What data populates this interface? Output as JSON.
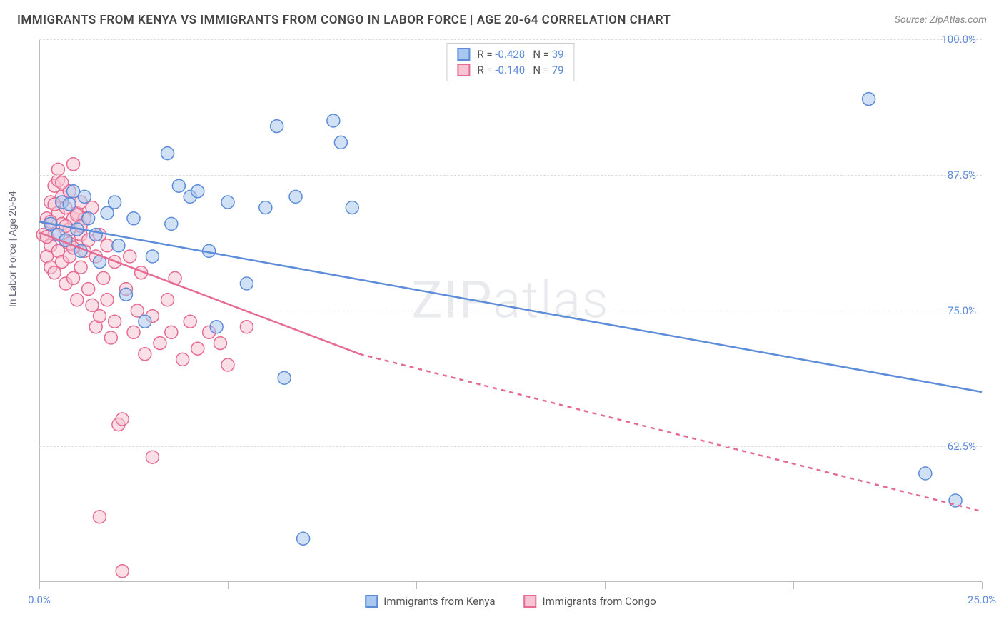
{
  "title": "IMMIGRANTS FROM KENYA VS IMMIGRANTS FROM CONGO IN LABOR FORCE | AGE 20-64 CORRELATION CHART",
  "source_label": "Source: ZipAtlas.com",
  "y_axis_label": "In Labor Force | Age 20-64",
  "watermark": "ZIPatlas",
  "chart": {
    "type": "scatter-with-regression",
    "background_color": "#ffffff",
    "grid_color": "#dddddd",
    "grid_dash": "4,4",
    "axis_color": "#bbbbbb",
    "tick_label_color": "#5d8cd8",
    "tick_fontsize": 15,
    "xlim": [
      0,
      25
    ],
    "ylim": [
      50,
      100
    ],
    "yticks": [
      62.5,
      75.0,
      87.5,
      100.0
    ],
    "ytick_labels": [
      "62.5%",
      "75.0%",
      "87.5%",
      "100.0%"
    ],
    "xticks": [
      0,
      5,
      10,
      15,
      20,
      25
    ],
    "xtick_labels_shown": {
      "0": "0.0%",
      "25": "25.0%"
    },
    "marker_radius": 9,
    "marker_opacity": 0.55,
    "line_width": 2.5
  },
  "series": {
    "kenya": {
      "label": "Immigrants from Kenya",
      "color_fill": "#a9c8ef",
      "color_stroke": "#5d8cd8",
      "R": "-0.428",
      "N": "39",
      "line": {
        "x1": 0,
        "y1": 83.2,
        "x2": 25,
        "y2": 67.5,
        "dash": null
      },
      "points": [
        [
          0.3,
          83.0
        ],
        [
          0.5,
          82.0
        ],
        [
          0.6,
          85.0
        ],
        [
          0.7,
          81.5
        ],
        [
          0.8,
          84.8
        ],
        [
          0.9,
          86.0
        ],
        [
          1.0,
          82.5
        ],
        [
          1.1,
          80.5
        ],
        [
          1.2,
          85.5
        ],
        [
          1.3,
          83.5
        ],
        [
          1.5,
          82.0
        ],
        [
          1.6,
          79.5
        ],
        [
          1.8,
          84.0
        ],
        [
          2.0,
          85.0
        ],
        [
          2.1,
          81.0
        ],
        [
          2.3,
          76.5
        ],
        [
          2.5,
          83.5
        ],
        [
          2.8,
          74.0
        ],
        [
          3.0,
          80.0
        ],
        [
          3.4,
          89.5
        ],
        [
          3.5,
          83.0
        ],
        [
          3.7,
          86.5
        ],
        [
          4.0,
          85.5
        ],
        [
          4.2,
          86.0
        ],
        [
          4.5,
          80.5
        ],
        [
          4.7,
          73.5
        ],
        [
          5.0,
          85.0
        ],
        [
          5.5,
          77.5
        ],
        [
          6.0,
          84.5
        ],
        [
          6.3,
          92.0
        ],
        [
          6.5,
          68.8
        ],
        [
          7.0,
          54.0
        ],
        [
          8.0,
          90.5
        ],
        [
          7.8,
          92.5
        ],
        [
          8.3,
          84.5
        ],
        [
          22.0,
          94.5
        ],
        [
          23.5,
          60.0
        ],
        [
          24.3,
          57.5
        ],
        [
          6.8,
          85.5
        ]
      ]
    },
    "congo": {
      "label": "Immigrants from Congo",
      "color_fill": "#f6c4d3",
      "color_stroke": "#e66b93",
      "R": "-0.140",
      "N": "79",
      "line_solid": {
        "x1": 0,
        "y1": 82.2,
        "x2": 8.5,
        "y2": 71.0
      },
      "line_dash": {
        "x1": 8.5,
        "y1": 71.0,
        "x2": 25,
        "y2": 56.5,
        "dash": "6,6"
      },
      "points": [
        [
          0.1,
          82.0
        ],
        [
          0.2,
          83.5
        ],
        [
          0.2,
          80.0
        ],
        [
          0.3,
          85.0
        ],
        [
          0.3,
          81.0
        ],
        [
          0.3,
          79.0
        ],
        [
          0.4,
          86.5
        ],
        [
          0.4,
          82.0
        ],
        [
          0.4,
          78.5
        ],
        [
          0.5,
          84.0
        ],
        [
          0.5,
          80.5
        ],
        [
          0.5,
          87.0
        ],
        [
          0.6,
          83.0
        ],
        [
          0.6,
          79.5
        ],
        [
          0.6,
          85.5
        ],
        [
          0.7,
          81.5
        ],
        [
          0.7,
          84.5
        ],
        [
          0.7,
          77.5
        ],
        [
          0.8,
          82.5
        ],
        [
          0.8,
          86.0
        ],
        [
          0.8,
          80.0
        ],
        [
          0.9,
          83.5
        ],
        [
          0.9,
          78.0
        ],
        [
          0.9,
          88.5
        ],
        [
          1.0,
          81.0
        ],
        [
          1.0,
          84.0
        ],
        [
          1.0,
          76.0
        ],
        [
          1.1,
          82.0
        ],
        [
          1.1,
          85.0
        ],
        [
          1.1,
          79.0
        ],
        [
          1.2,
          80.5
        ],
        [
          1.2,
          83.5
        ],
        [
          1.3,
          77.0
        ],
        [
          1.3,
          81.5
        ],
        [
          1.4,
          75.5
        ],
        [
          1.4,
          84.5
        ],
        [
          1.5,
          73.5
        ],
        [
          1.5,
          80.0
        ],
        [
          1.6,
          74.5
        ],
        [
          1.6,
          82.0
        ],
        [
          1.7,
          78.0
        ],
        [
          1.8,
          76.0
        ],
        [
          1.8,
          81.0
        ],
        [
          1.9,
          72.5
        ],
        [
          2.0,
          74.0
        ],
        [
          2.0,
          79.5
        ],
        [
          2.1,
          64.5
        ],
        [
          2.2,
          65.0
        ],
        [
          2.3,
          77.0
        ],
        [
          2.4,
          80.0
        ],
        [
          2.5,
          73.0
        ],
        [
          2.6,
          75.0
        ],
        [
          2.7,
          78.5
        ],
        [
          2.8,
          71.0
        ],
        [
          3.0,
          74.5
        ],
        [
          3.0,
          61.5
        ],
        [
          3.2,
          72.0
        ],
        [
          3.4,
          76.0
        ],
        [
          3.5,
          73.0
        ],
        [
          3.6,
          78.0
        ],
        [
          3.8,
          70.5
        ],
        [
          4.0,
          74.0
        ],
        [
          4.2,
          71.5
        ],
        [
          4.5,
          73.0
        ],
        [
          4.8,
          72.0
        ],
        [
          5.0,
          70.0
        ],
        [
          5.5,
          73.5
        ],
        [
          2.2,
          51.0
        ],
        [
          1.6,
          56.0
        ],
        [
          0.5,
          88.0
        ],
        [
          0.6,
          86.8
        ],
        [
          0.4,
          84.8
        ],
        [
          0.3,
          83.2
        ],
        [
          0.2,
          81.8
        ],
        [
          0.7,
          82.8
        ],
        [
          0.8,
          81.2
        ],
        [
          0.9,
          80.8
        ],
        [
          1.0,
          83.8
        ],
        [
          1.1,
          82.8
        ]
      ]
    }
  },
  "legend_top": {
    "r_label": "R =",
    "n_label": "N ="
  },
  "legend_bottom": [
    {
      "key": "kenya"
    },
    {
      "key": "congo"
    }
  ]
}
